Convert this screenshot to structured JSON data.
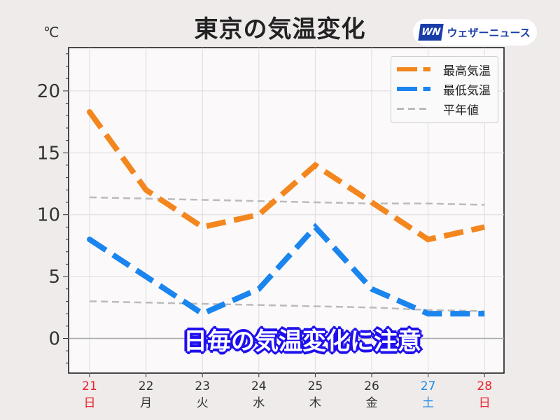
{
  "header": {
    "title": "東京の気温変化",
    "unit": "℃",
    "logo_mark": "WN",
    "logo_text": "ウェザーニュース"
  },
  "banner": "日毎の気温変化に注意",
  "chart_data": {
    "type": "line",
    "title": "東京の気温変化",
    "ylabel": "℃",
    "ylim": [
      -2.8,
      23.5
    ],
    "yticks": [
      0,
      5,
      10,
      15,
      20
    ],
    "grid": true,
    "legend_position": "top-right",
    "categories": [
      "21",
      "22",
      "23",
      "24",
      "25",
      "26",
      "27",
      "28"
    ],
    "weekdays": [
      "日",
      "月",
      "火",
      "水",
      "木",
      "金",
      "土",
      "日"
    ],
    "day_colors": [
      "#e8222b",
      "#333333",
      "#333333",
      "#333333",
      "#333333",
      "#333333",
      "#1a8ae8",
      "#e8222b"
    ],
    "series": [
      {
        "name": "最高気温",
        "color": "#f4861e",
        "style": "dashed",
        "values": [
          18.3,
          12,
          9,
          10,
          14,
          11,
          8,
          9
        ]
      },
      {
        "name": "最低気温",
        "color": "#1a85ee",
        "style": "dashed",
        "values": [
          8,
          5,
          2,
          4,
          9,
          4,
          2,
          2
        ]
      },
      {
        "name": "平年値",
        "color": "#bbbbbb",
        "style": "dashed-thin",
        "values": [
          11.4,
          11.3,
          11.2,
          11.1,
          11.0,
          10.9,
          10.9,
          10.8
        ]
      },
      {
        "name": "平年値",
        "color": "#bbbbbb",
        "style": "dashed-thin",
        "values": [
          3.0,
          2.9,
          2.8,
          2.7,
          2.6,
          2.5,
          2.3,
          2.2
        ]
      }
    ]
  }
}
